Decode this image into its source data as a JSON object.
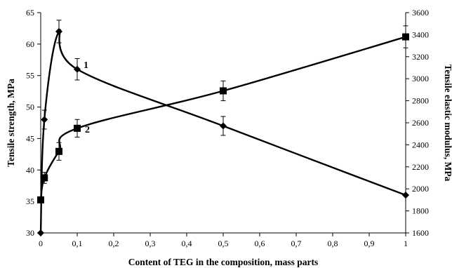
{
  "chart_data": {
    "type": "line",
    "title": "",
    "xlabel": "Content of TEG in the composition, mass parts",
    "ylabel_left": "Tensile strength, MPa",
    "ylabel_right": "Tensile elastic modulus,  MPa",
    "xlim": [
      0,
      1
    ],
    "ylim_left": [
      30,
      65
    ],
    "ylim_right": [
      1600,
      3600
    ],
    "x_ticks": [
      "0",
      "0,1",
      "0,2",
      "0,3",
      "0,4",
      "0,5",
      "0,6",
      "0,7",
      "0,8",
      "0,9",
      "1"
    ],
    "y_left_ticks": [
      "30",
      "35",
      "40",
      "45",
      "50",
      "55",
      "60",
      "65"
    ],
    "y_right_ticks": [
      "1600",
      "1800",
      "2000",
      "2200",
      "2400",
      "2600",
      "2800",
      "3000",
      "3200",
      "3400",
      "3600"
    ],
    "grid": false,
    "series": [
      {
        "name": "1",
        "axis": "left",
        "marker": "diamond",
        "x": [
          0,
          0.01,
          0.05,
          0.1,
          0.5,
          1
        ],
        "y": [
          30,
          48,
          62,
          56,
          47,
          36
        ],
        "error": [
          null,
          1.5,
          1.8,
          1.7,
          1.5,
          null
        ]
      },
      {
        "name": "2",
        "axis": "right",
        "marker": "square",
        "x": [
          0,
          0.01,
          0.05,
          0.1,
          0.5,
          1
        ],
        "y": [
          1900,
          2100,
          2340,
          2550,
          2890,
          3380
        ],
        "error": [
          null,
          50,
          80,
          80,
          90,
          100
        ]
      }
    ]
  }
}
